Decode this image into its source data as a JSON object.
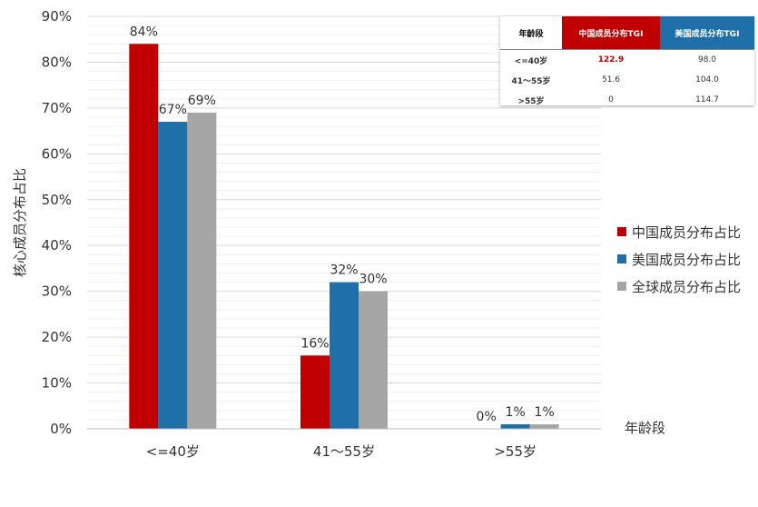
{
  "chart_data": {
    "type": "bar",
    "categories": [
      "<=40岁",
      "41～55岁",
      ">55岁"
    ],
    "series": [
      {
        "name": "中国成员分布占比",
        "values": [
          84,
          16,
          0
        ],
        "labels": [
          "84%",
          "16%",
          "0%"
        ],
        "color": "#C00000"
      },
      {
        "name": "美国成员分布占比",
        "values": [
          67,
          32,
          1
        ],
        "labels": [
          "67%",
          "32%",
          "1%"
        ],
        "color": "#1F6FA8"
      },
      {
        "name": "全球成员分布占比",
        "values": [
          69,
          30,
          1
        ],
        "labels": [
          "69%",
          "30%",
          "1%"
        ],
        "color": "#A6A6A6"
      }
    ],
    "ylabel": "核心成员分布占比",
    "xlabel": "年龄段",
    "ylim": [
      0,
      90
    ],
    "yticks": [
      "0%",
      "10%",
      "20%",
      "30%",
      "40%",
      "50%",
      "60%",
      "70%",
      "80%",
      "90%"
    ],
    "grid": true,
    "legend_position": "right"
  },
  "tgi_table": {
    "headers": [
      "年龄段",
      "中国成员分布TGI",
      "美国成员分布TGI"
    ],
    "header_colors": [
      "#FFFFFF",
      "#C00000",
      "#1F6FA8"
    ],
    "rows": [
      {
        "age": "<=40岁",
        "china": "122.9",
        "us": "98.0",
        "china_highlight": true
      },
      {
        "age": "41～55岁",
        "china": "51.6",
        "us": "104.0",
        "china_highlight": false
      },
      {
        "age": ">55岁",
        "china": "0",
        "us": "114.7",
        "china_highlight": false
      }
    ]
  }
}
